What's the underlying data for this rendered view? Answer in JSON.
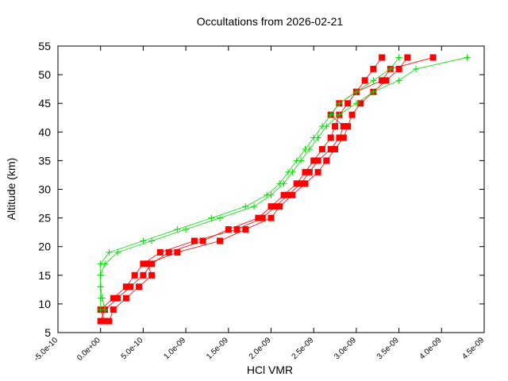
{
  "chart_data": {
    "type": "line",
    "title": "Occultations from 2026-02-21",
    "x_label": "HCl VMR",
    "y_label": "Altitude (km)",
    "xlim": [
      -5e-10,
      4.5e-09
    ],
    "ylim": [
      5,
      55
    ],
    "xticks": [
      {
        "value": -5e-10,
        "label": "-5.0e-10"
      },
      {
        "value": 0,
        "label": "0.0e+00"
      },
      {
        "value": 5e-10,
        "label": "5.0e-10"
      },
      {
        "value": 1e-09,
        "label": "1.0e-09"
      },
      {
        "value": 1.5e-09,
        "label": "1.5e-09"
      },
      {
        "value": 2e-09,
        "label": "2.0e-09"
      },
      {
        "value": 2.5e-09,
        "label": "2.5e-09"
      },
      {
        "value": 3e-09,
        "label": "3.0e-09"
      },
      {
        "value": 3.5e-09,
        "label": "3.5e-09"
      },
      {
        "value": 4e-09,
        "label": "4.0e-09"
      },
      {
        "value": 4.5e-09,
        "label": "4.5e-09"
      }
    ],
    "yticks": [
      5,
      10,
      15,
      20,
      25,
      30,
      35,
      40,
      45,
      50,
      55
    ],
    "series": [
      {
        "color": "#ff0000",
        "marker": "square",
        "x": [
          0,
          5e-11,
          2e-10,
          3.5e-10,
          5e-10,
          6e-10,
          8e-10,
          1.2e-09,
          1.5e-09,
          1.85e-09,
          2e-09,
          2.15e-09,
          2.3e-09,
          2.4e-09,
          2.5e-09,
          2.6e-09,
          2.7e-09,
          2.75e-09,
          2.8e-09,
          2.9e-09,
          3e-09,
          3.1e-09,
          3.2e-09,
          3.3e-09
        ],
        "y": [
          7,
          9,
          11,
          13,
          15,
          17,
          19,
          21,
          23,
          25,
          27,
          29,
          31,
          33,
          35,
          37,
          39,
          41,
          43,
          45,
          47,
          49,
          51,
          53
        ]
      },
      {
        "color": "#ff0000",
        "marker": "square",
        "x": [
          1e-10,
          1.5e-10,
          3e-10,
          4.5e-10,
          6e-10,
          5.5e-10,
          9e-10,
          1.4e-09,
          1.7e-09,
          2e-09,
          2.1e-09,
          2.25e-09,
          2.4e-09,
          2.55e-09,
          2.65e-09,
          2.75e-09,
          2.85e-09,
          2.9e-09,
          2.95e-09,
          3.05e-09,
          3.2e-09,
          3.35e-09,
          3.5e-09,
          3.6e-09
        ],
        "y": [
          7,
          9,
          11,
          13,
          15,
          17,
          19,
          21,
          23,
          25,
          27,
          29,
          31,
          33,
          35,
          37,
          39,
          41,
          43,
          45,
          47,
          49,
          51,
          53
        ]
      },
      {
        "color": "#ff0000",
        "marker": "square",
        "x": [
          5e-11,
          0,
          1.5e-10,
          3e-10,
          4e-10,
          5e-10,
          7e-10,
          1.1e-09,
          1.6e-09,
          1.9e-09,
          2.05e-09,
          2.2e-09,
          2.35e-09,
          2.45e-09,
          2.55e-09,
          2.7e-09,
          2.8e-09,
          2.85e-09,
          2.7e-09,
          2.8e-09,
          3e-09,
          3.3e-09,
          3.4e-09,
          3.9e-09
        ],
        "y": [
          7,
          9,
          11,
          13,
          15,
          17,
          19,
          21,
          23,
          25,
          27,
          29,
          31,
          33,
          35,
          37,
          39,
          41,
          43,
          45,
          47,
          49,
          51,
          53
        ]
      },
      {
        "color": "#00dd00",
        "marker": "plus",
        "x": [
          0,
          0,
          0,
          0,
          0,
          1e-10,
          5e-10,
          9e-10,
          1.3e-09,
          1.7e-09,
          1.95e-09,
          2.1e-09,
          2.2e-09,
          2.3e-09,
          2.4e-09,
          2.5e-09,
          2.6e-09,
          2.7e-09,
          2.8e-09,
          3e-09,
          3.2e-09,
          3.4e-09,
          3.5e-09
        ],
        "y": [
          9,
          11,
          13,
          15,
          17,
          19,
          21,
          23,
          25,
          27,
          29,
          31,
          33,
          35,
          37,
          39,
          41,
          43,
          45,
          47,
          49,
          51,
          53
        ]
      },
      {
        "color": "#00dd00",
        "marker": "plus",
        "x": [
          5e-11,
          2e-11,
          0,
          0,
          5e-11,
          2e-10,
          6e-10,
          1e-09,
          1.4e-09,
          1.8e-09,
          2e-09,
          2.15e-09,
          2.25e-09,
          2.35e-09,
          2.45e-09,
          2.55e-09,
          2.65e-09,
          2.8e-09,
          3e-09,
          3.2e-09,
          3.5e-09,
          3.7e-09,
          4.3e-09
        ],
        "y": [
          9,
          11,
          13,
          15,
          17,
          19,
          21,
          23,
          25,
          27,
          29,
          31,
          33,
          35,
          37,
          39,
          41,
          43,
          45,
          47,
          49,
          51,
          53
        ]
      }
    ]
  }
}
